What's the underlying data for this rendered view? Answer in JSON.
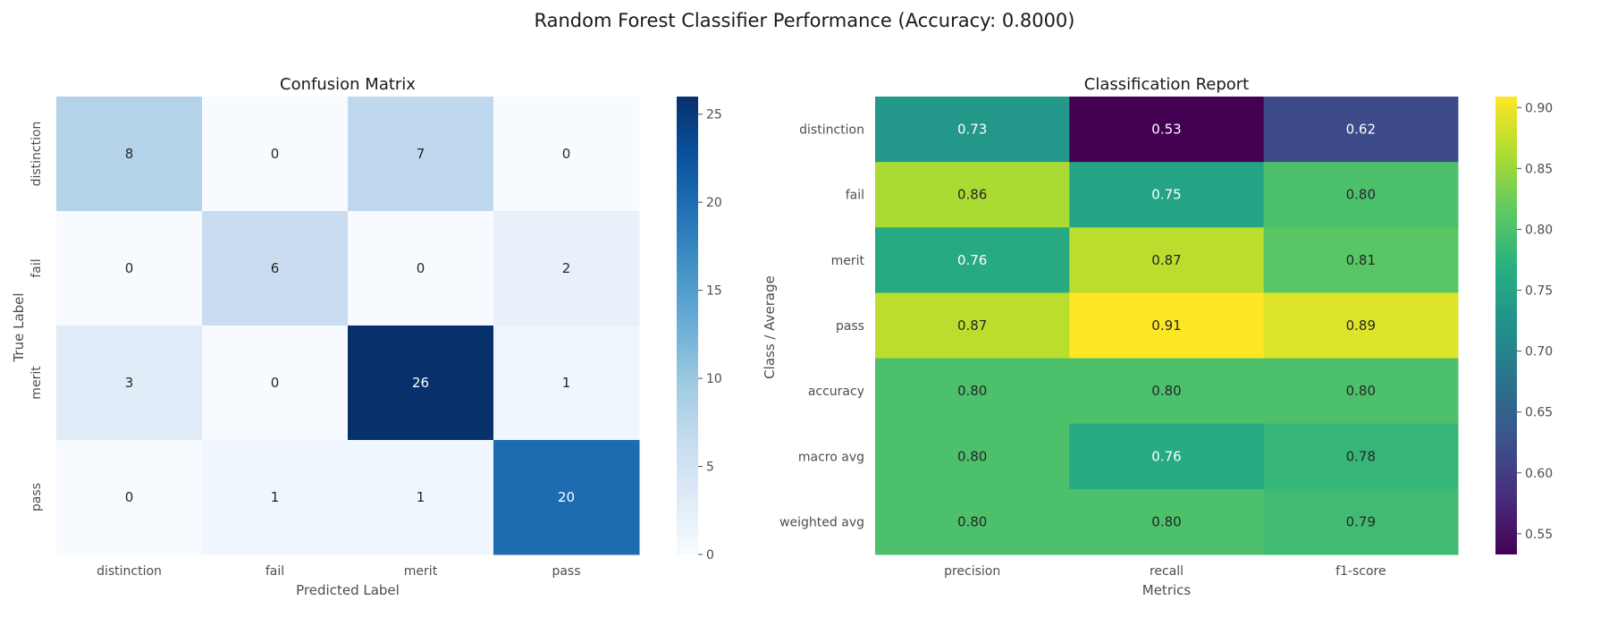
{
  "suptitle": "Random Forest Classifier Performance (Accuracy: 0.8000)",
  "chart_data": [
    {
      "type": "heatmap",
      "title": "Confusion Matrix",
      "xlabel": "Predicted Label",
      "ylabel": "True Label",
      "x_categories": [
        "distinction",
        "fail",
        "merit",
        "pass"
      ],
      "y_categories": [
        "distinction",
        "fail",
        "merit",
        "pass"
      ],
      "values": [
        [
          8,
          0,
          7,
          0
        ],
        [
          0,
          6,
          0,
          2
        ],
        [
          3,
          0,
          26,
          1
        ],
        [
          0,
          1,
          1,
          20
        ]
      ],
      "labels": [
        [
          "8",
          "0",
          "7",
          "0"
        ],
        [
          "0",
          "6",
          "0",
          "2"
        ],
        [
          "3",
          "0",
          "26",
          "1"
        ],
        [
          "0",
          "1",
          "1",
          "20"
        ]
      ],
      "colormap": "Blues",
      "color_range": [
        0,
        26
      ],
      "colorbar_ticks": [
        0,
        5,
        10,
        15,
        20,
        25
      ],
      "colorbar_tick_labels": [
        "0",
        "5",
        "10",
        "15",
        "20",
        "25"
      ],
      "y_tick_rotation": "vertical",
      "grid": false
    },
    {
      "type": "heatmap",
      "title": "Classification Report",
      "xlabel": "Metrics",
      "ylabel": "Class / Average",
      "x_categories": [
        "precision",
        "recall",
        "f1-score"
      ],
      "y_categories": [
        "distinction",
        "fail",
        "merit",
        "pass",
        "accuracy",
        "macro avg",
        "weighted avg"
      ],
      "values": [
        [
          0.73,
          0.53,
          0.62
        ],
        [
          0.86,
          0.75,
          0.8
        ],
        [
          0.76,
          0.87,
          0.81
        ],
        [
          0.87,
          0.91,
          0.89
        ],
        [
          0.8,
          0.8,
          0.8
        ],
        [
          0.8,
          0.76,
          0.78
        ],
        [
          0.8,
          0.8,
          0.79
        ]
      ],
      "labels": [
        [
          "0.73",
          "0.53",
          "0.62"
        ],
        [
          "0.86",
          "0.75",
          "0.80"
        ],
        [
          "0.76",
          "0.87",
          "0.81"
        ],
        [
          "0.87",
          "0.91",
          "0.89"
        ],
        [
          "0.80",
          "0.80",
          "0.80"
        ],
        [
          "0.80",
          "0.76",
          "0.78"
        ],
        [
          "0.80",
          "0.80",
          "0.79"
        ]
      ],
      "colormap": "viridis",
      "color_range": [
        0.533,
        0.909
      ],
      "colorbar_ticks": [
        0.55,
        0.6,
        0.65,
        0.7,
        0.75,
        0.8,
        0.85,
        0.9
      ],
      "colorbar_tick_labels": [
        "0.55",
        "0.60",
        "0.65",
        "0.70",
        "0.75",
        "0.80",
        "0.85",
        "0.90"
      ],
      "y_tick_rotation": "horizontal",
      "grid": false
    }
  ]
}
